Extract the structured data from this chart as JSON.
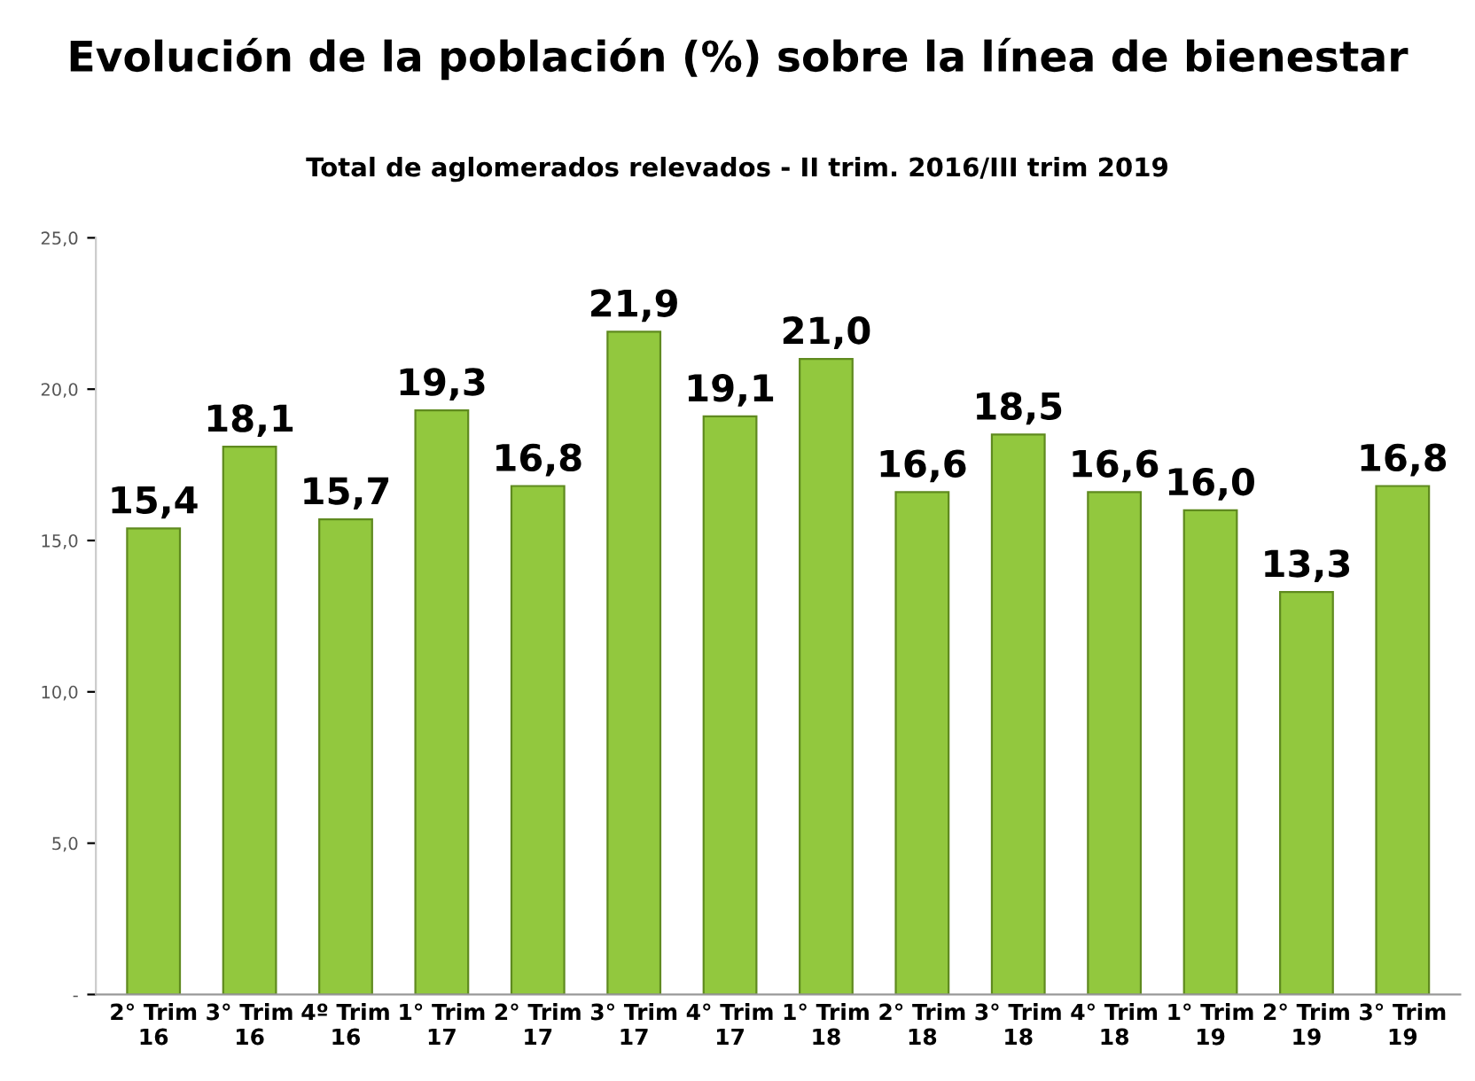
{
  "chart_data": {
    "type": "bar",
    "title": "Evolución de la población (%) sobre la línea de bienestar",
    "subtitle": "Total de aglomerados relevados - II trim. 2016/III trim 2019",
    "categories": [
      "2° Trim\n16",
      "3° Trim\n16",
      "4º Trim\n16",
      "1° Trim\n17",
      "2° Trim\n17",
      "3° Trim\n17",
      "4° Trim\n17",
      "1° Trim\n18",
      "2° Trim\n18",
      "3° Trim\n18",
      "4° Trim\n18",
      "1° Trim\n19",
      "2° Trim\n19",
      "3° Trim\n19"
    ],
    "values": [
      15.4,
      18.1,
      15.7,
      19.3,
      16.8,
      21.9,
      19.1,
      21.0,
      16.6,
      18.5,
      16.6,
      16.0,
      13.3,
      16.8
    ],
    "value_labels": [
      "15,4",
      "18,1",
      "15,7",
      "19,3",
      "16,8",
      "21,9",
      "19,1",
      "21,0",
      "16,6",
      "18,5",
      "16,6",
      "16,0",
      "13,3",
      "16,8"
    ],
    "color": "#92c83e",
    "ylim": [
      0,
      25
    ],
    "yticks": [
      {
        "value": 0,
        "label": "-"
      },
      {
        "value": 5,
        "label": "5,0"
      },
      {
        "value": 10,
        "label": "10,0"
      },
      {
        "value": 15,
        "label": "15,0"
      },
      {
        "value": 20,
        "label": "20,0"
      },
      {
        "value": 25,
        "label": "25,0"
      }
    ],
    "grid": false
  }
}
